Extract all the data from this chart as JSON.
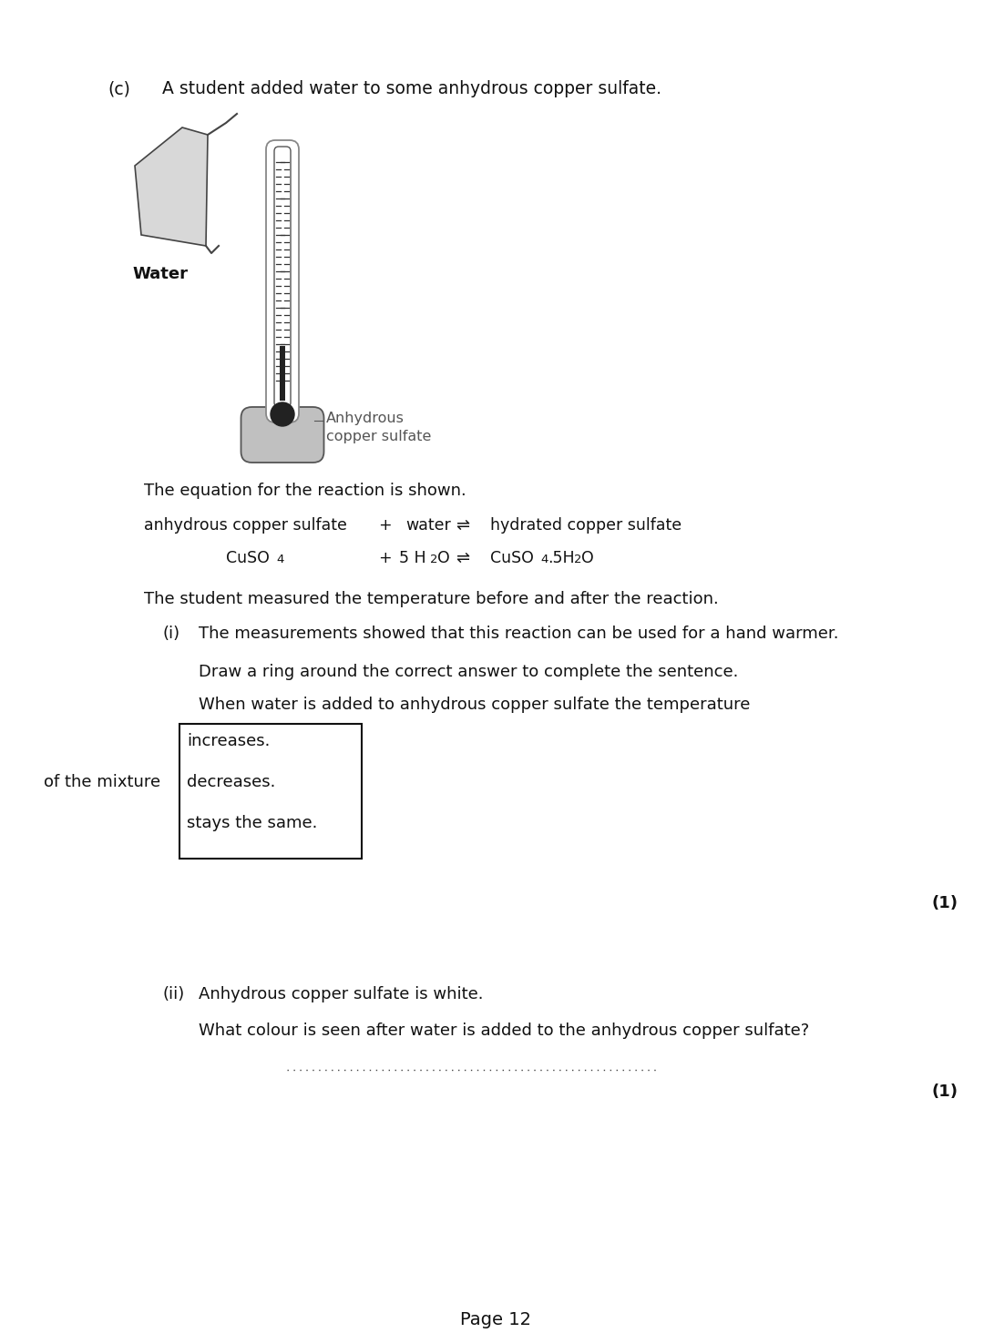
{
  "bg_color": "#ffffff",
  "page_number": "Page 12",
  "section_c_label": "(c)",
  "section_c_text": "A student added water to some anhydrous copper sulfate.",
  "water_label": "Water",
  "anhydrous_label1": "Anhydrous",
  "anhydrous_label2": "copper sulfate",
  "equation_intro": "The equation for the reaction is shown.",
  "measured_text": "The student measured the temperature before and after the reaction.",
  "part_i_label": "(i)",
  "part_i_text": "The measurements showed that this reaction can be used for a hand warmer.",
  "draw_ring_text": "Draw a ring around the correct answer to complete the sentence.",
  "when_water_text": "When water is added to anhydrous copper sulfate the temperature",
  "of_mixture_text": "of the mixture",
  "box_options": [
    "increases.",
    "decreases.",
    "stays the same."
  ],
  "mark_1a": "(1)",
  "part_ii_label": "(ii)",
  "part_ii_text": "Anhydrous copper sulfate is white.",
  "part_ii_q": "What colour is seen after water is added to the anhydrous copper sulfate?",
  "mark_1b": "(1)"
}
